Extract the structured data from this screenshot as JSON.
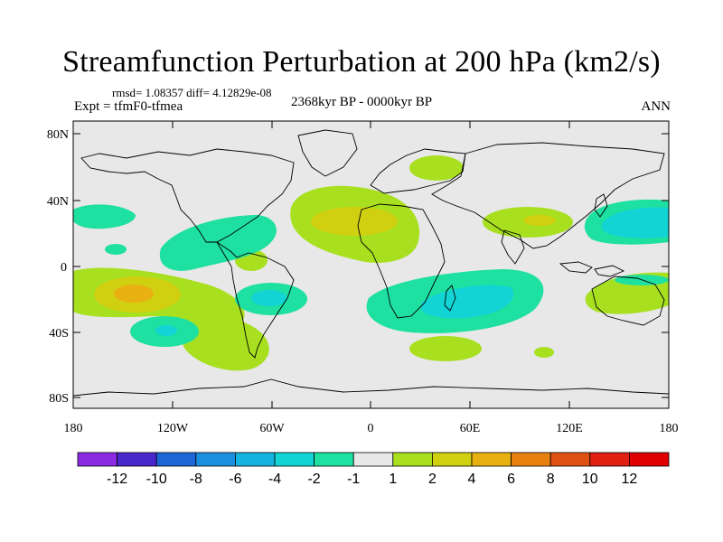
{
  "figure": {
    "title": "Streamfunction Perturbation at 200 hPa (km2/s)",
    "stats": "rmsd= 1.08357 diff= 4.12829e-08",
    "experiment": "Expt = tfmF0-tfmea",
    "period": "2368kyr BP - 0000kyr BP",
    "season": "ANN"
  },
  "axes": {
    "y_labels": [
      "80N",
      "40N",
      "0",
      "40S",
      "80S"
    ],
    "x_labels": [
      "180",
      "120W",
      "60W",
      "0",
      "60E",
      "120E",
      "180"
    ]
  },
  "colorbar": {
    "labels": [
      "-12",
      "-10",
      "-8",
      "-6",
      "-4",
      "-2",
      "-1",
      "1",
      "2",
      "4",
      "6",
      "8",
      "10",
      "12"
    ],
    "colors": [
      "#8a2be2",
      "#4a27cc",
      "#1e66d8",
      "#1a8fe0",
      "#15b4e0",
      "#12d4d4",
      "#1ee0a0",
      "#e8e8e8",
      "#a8e020",
      "#d0d010",
      "#e8b010",
      "#e88010",
      "#e05010",
      "#e02010",
      "#e00000"
    ]
  },
  "map": {
    "background_color": "#e8e8e8",
    "coast_color": "#000000"
  }
}
